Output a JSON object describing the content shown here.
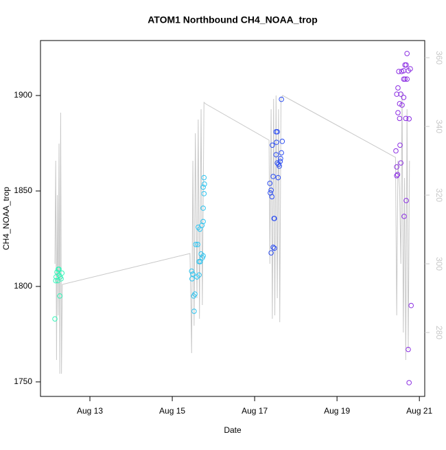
{
  "chart_data": {
    "type": "scatter",
    "title": "ATOM1 Northbound CH4_NOAA_trop",
    "x_label": "Date",
    "y_label": "CH4_NOAA_trop",
    "xlim": [
      11.8,
      21.13
    ],
    "xticks": [
      {
        "value": 13,
        "label": "Aug 13"
      },
      {
        "value": 15,
        "label": "Aug 15"
      },
      {
        "value": 17,
        "label": "Aug 17"
      },
      {
        "value": 19,
        "label": "Aug 19"
      },
      {
        "value": 21,
        "label": "Aug 21"
      }
    ],
    "ylim": [
      1742.4,
      1928.8
    ],
    "yticks": [
      1750,
      1800,
      1850,
      1900
    ],
    "y2lim": [
      261.4,
      365
    ],
    "y2ticks": [
      280,
      300,
      320,
      340,
      360
    ],
    "y2_color": "#c8c8c8",
    "series": [
      {
        "kind": "line",
        "axis": "y2",
        "color": "#c8c8c8",
        "x": [
          12.15,
          12.17,
          12.19,
          12.21,
          12.23,
          12.25,
          12.27,
          12.29,
          12.31,
          12.33,
          15.43,
          15.45,
          15.47,
          15.5,
          15.53,
          15.56,
          15.6,
          15.63,
          15.66,
          15.7,
          15.73,
          15.77,
          15.82,
          17.35,
          17.37,
          17.4,
          17.43,
          17.46,
          17.49,
          17.52,
          17.55,
          17.58,
          17.61,
          17.64,
          17.68,
          20.42,
          20.45,
          20.48,
          20.52,
          20.55,
          20.58,
          20.61,
          20.64,
          20.67,
          20.7,
          20.73,
          20.76
        ],
        "values": [
          300,
          330,
          272,
          320,
          285,
          335,
          268,
          344,
          268,
          294,
          303,
          290,
          274,
          330,
          282,
          338,
          290,
          342,
          284,
          345,
          288,
          347,
          346.5,
          336,
          300,
          345,
          284,
          348,
          285,
          349,
          290,
          345,
          283,
          348,
          349,
          331,
          285,
          330,
          322,
          300,
          350,
          280,
          325,
          272,
          345,
          275,
          330
        ]
      },
      {
        "kind": "points",
        "color": "#33f5b8",
        "x": [
          12.15,
          12.18,
          12.2,
          12.22,
          12.23,
          12.25,
          12.27,
          12.28,
          12.3,
          12.32,
          12.17,
          12.25
        ],
        "values": [
          1783,
          1805,
          1807.5,
          1803,
          1809,
          1806,
          1795,
          1805,
          1804,
          1807,
          1803,
          1809
        ]
      },
      {
        "kind": "points",
        "color": "#29c3f0",
        "x": [
          15.47,
          15.48,
          15.5,
          15.52,
          15.53,
          15.55,
          15.57,
          15.6,
          15.62,
          15.63,
          15.65,
          15.67,
          15.68,
          15.7,
          15.72,
          15.73,
          15.75,
          15.75,
          15.77,
          15.75,
          15.77,
          15.78,
          15.75,
          15.65
        ],
        "values": [
          1808,
          1804,
          1806.5,
          1795,
          1787,
          1796,
          1822,
          1805,
          1822,
          1831,
          1813,
          1830,
          1813,
          1817,
          1832,
          1815,
          1834,
          1841,
          1848.6,
          1852,
          1857,
          1853.6,
          1816,
          1806
        ]
      },
      {
        "kind": "points",
        "color": "#2a4cf2",
        "x": [
          17.37,
          17.38,
          17.4,
          17.42,
          17.43,
          17.45,
          17.47,
          17.48,
          17.45,
          17.48,
          17.4,
          17.52,
          17.55,
          17.53,
          17.52,
          17.55,
          17.58,
          17.6,
          17.57,
          17.63,
          17.65,
          17.67,
          17.65,
          17.62
        ],
        "values": [
          1854,
          1849,
          1850.4,
          1847,
          1874,
          1857.6,
          1835.6,
          1835.6,
          1820.5,
          1820,
          1817.6,
          1881,
          1881,
          1875.5,
          1869,
          1864.7,
          1864,
          1863,
          1857,
          1867,
          1870,
          1876,
          1898,
          1865.5
        ]
      },
      {
        "kind": "points",
        "color": "#8a2be2",
        "x": [
          20.7,
          20.65,
          20.68,
          20.78,
          20.73,
          20.5,
          20.62,
          20.57,
          20.65,
          20.7,
          20.62,
          20.48,
          20.55,
          20.45,
          20.52,
          20.58,
          20.48,
          20.62,
          20.52,
          20.67,
          20.75,
          20.53,
          20.43,
          20.45,
          20.55,
          20.47,
          20.45,
          20.68,
          20.63,
          20.8,
          20.73,
          20.75
        ],
        "values": [
          1922,
          1916,
          1916,
          1914,
          1913,
          1912.6,
          1913,
          1912.6,
          1908.6,
          1908.6,
          1908.6,
          1904,
          1900.7,
          1900.7,
          1895.7,
          1895,
          1891,
          1899,
          1888,
          1888,
          1887.8,
          1874,
          1871,
          1862.6,
          1864.7,
          1858.6,
          1858,
          1845,
          1836.7,
          1790,
          1767,
          1749.6
        ]
      }
    ]
  }
}
